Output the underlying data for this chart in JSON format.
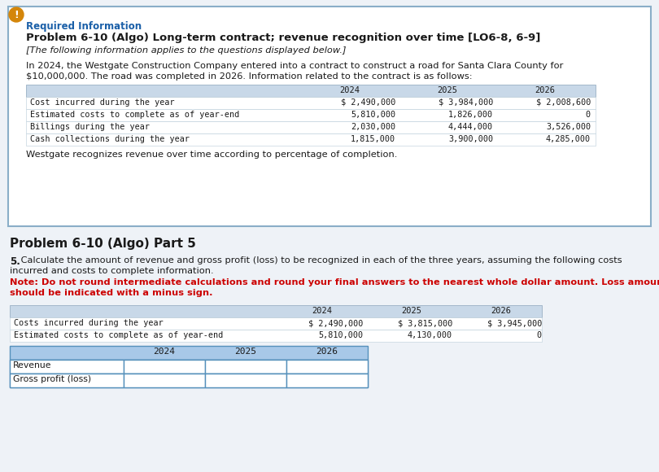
{
  "bg_color": "#eef2f7",
  "box_bg": "#ffffff",
  "box_border": "#8aaec8",
  "required_info_color": "#1a5fa8",
  "title_bold": "Problem 6-10 (Algo) Long-term contract; revenue recognition over time [LO6-8, 6-9]",
  "subtitle_italic": "[The following information applies to the questions displayed below.]",
  "body_line1": "In 2024, the Westgate Construction Company entered into a contract to construct a road for Santa Clara County for",
  "body_line2": "$10,000,000. The road was completed in 2026. Information related to the contract is as follows:",
  "table1_headers": [
    "2024",
    "2025",
    "2026"
  ],
  "table1_rows": [
    [
      "Cost incurred during the year",
      "$ 2,490,000",
      "$ 3,984,000",
      "$ 2,008,600"
    ],
    [
      "Estimated costs to complete as of year-end",
      "5,810,000",
      "1,826,000",
      "0"
    ],
    [
      "Billings during the year",
      "2,030,000",
      "4,444,000",
      "3,526,000"
    ],
    [
      "Cash collections during the year",
      "1,815,000",
      "3,900,000",
      "4,285,000"
    ]
  ],
  "footer_text": "Westgate recognizes revenue over time according to percentage of completion.",
  "part5_header": "Problem 6-10 (Algo) Part 5",
  "part5_num_bold": "5.",
  "part5_body": " Calculate the amount of revenue and gross profit (loss) to be recognized in each of the three years, assuming the following costs",
  "part5_body2": "incurred and costs to complete information.",
  "note_line1": "Note: Do not round intermediate calculations and round your final answers to the nearest whole dollar amount. Loss amounts",
  "note_line2": "should be indicated with a minus sign.",
  "table2_headers": [
    "2024",
    "2025",
    "2026"
  ],
  "table2_rows": [
    [
      "Costs incurred during the year",
      "$ 2,490,000",
      "$ 3,815,000",
      "$ 3,945,000"
    ],
    [
      "Estimated costs to complete as of year-end",
      "5,810,000",
      "4,130,000",
      "0"
    ]
  ],
  "table3_col_headers": [
    "",
    "2024",
    "2025",
    "2026"
  ],
  "table3_rows": [
    [
      "Revenue",
      "",
      "",
      ""
    ],
    [
      "Gross profit (loss)",
      "",
      "",
      ""
    ]
  ],
  "table_header_bg": "#c8d8e8",
  "table3_header_bg": "#a8c8e8",
  "table_row_bg": "#ffffff",
  "circle_color": "#d4860a",
  "text_color": "#1a1a1a",
  "red_color": "#cc0000"
}
